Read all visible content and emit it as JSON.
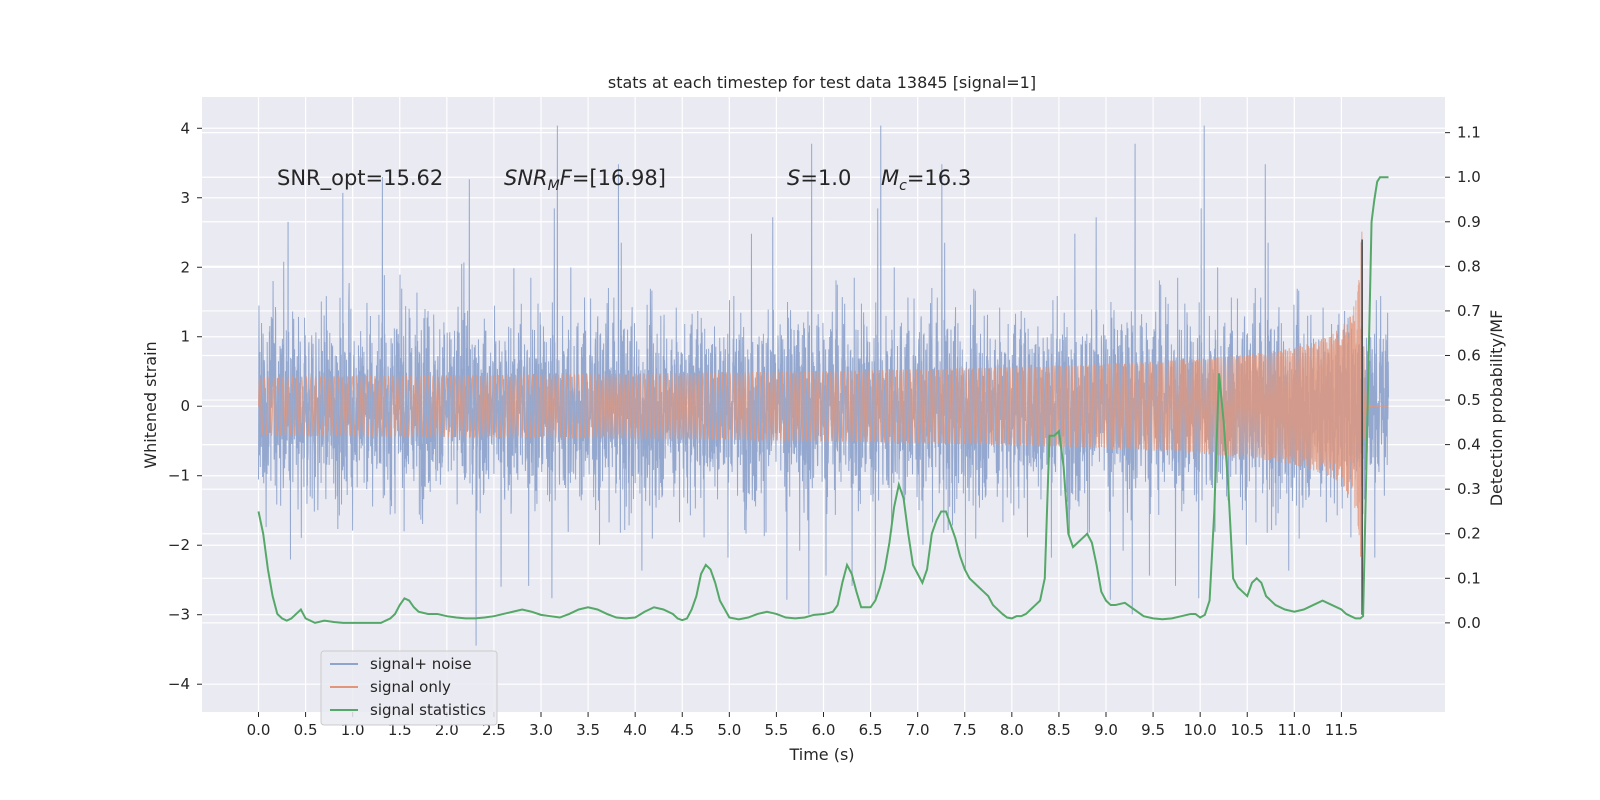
{
  "chart_data": {
    "type": "line",
    "title": "stats at each timestep for test data 13845 [signal=1]",
    "xlabel": "Time (s)",
    "ylabel_left": "Whitened strain",
    "ylabel_right": "Detection probability/MF",
    "xlim": [
      -0.6,
      12.6
    ],
    "ylim_left": [
      -4.4,
      4.45
    ],
    "ylim_right": [
      -0.2,
      1.18
    ],
    "x_ticks": [
      "0.0",
      "0.5",
      "1.0",
      "1.5",
      "2.0",
      "2.5",
      "3.0",
      "3.5",
      "4.0",
      "4.5",
      "5.0",
      "5.5",
      "6.0",
      "6.5",
      "7.0",
      "7.5",
      "8.0",
      "8.5",
      "9.0",
      "9.5",
      "10.0",
      "10.5",
      "11.0",
      "11.5"
    ],
    "y_ticks_left": [
      "−4",
      "−3",
      "−2",
      "−1",
      "0",
      "1",
      "2",
      "3",
      "4"
    ],
    "y_ticks_right": [
      "0.0",
      "0.1",
      "0.2",
      "0.3",
      "0.4",
      "0.5",
      "0.6",
      "0.7",
      "0.8",
      "0.9",
      "1.0",
      "1.1"
    ],
    "grid": true,
    "legend_position": "lower left",
    "annotations": [
      {
        "text": "SNR_opt=15.62"
      },
      {
        "text": "SNR_MF=[16.98]"
      },
      {
        "text": "S=1.0"
      },
      {
        "text": "M_c=16.3"
      }
    ],
    "series": [
      {
        "name": "signal+ noise",
        "axis": "left",
        "color": "#8fa4cc",
        "description_values": {
          "t_start": 0.0,
          "t_end": 12.0,
          "typical_range": [
            -2.0,
            2.0
          ],
          "max": 4.1,
          "min": -3.8
        }
      },
      {
        "name": "signal only",
        "axis": "left",
        "color": "#e1967a",
        "chirp": {
          "t_start": 0.0,
          "t_merger": 11.72,
          "t_end": 12.0,
          "peak_amplitude": 2.6
        }
      },
      {
        "name": "signal statistics",
        "axis": "right",
        "color": "#55a868",
        "x": [
          0.0,
          0.05,
          0.1,
          0.15,
          0.2,
          0.25,
          0.3,
          0.35,
          0.4,
          0.45,
          0.5,
          0.6,
          0.7,
          0.8,
          0.9,
          1.0,
          1.1,
          1.2,
          1.3,
          1.4,
          1.45,
          1.5,
          1.55,
          1.6,
          1.65,
          1.7,
          1.8,
          1.9,
          2.0,
          2.1,
          2.2,
          2.3,
          2.4,
          2.5,
          2.6,
          2.7,
          2.8,
          2.9,
          3.0,
          3.1,
          3.2,
          3.3,
          3.4,
          3.5,
          3.6,
          3.7,
          3.8,
          3.9,
          4.0,
          4.1,
          4.2,
          4.3,
          4.4,
          4.45,
          4.5,
          4.55,
          4.6,
          4.65,
          4.7,
          4.75,
          4.8,
          4.85,
          4.9,
          5.0,
          5.1,
          5.2,
          5.3,
          5.4,
          5.5,
          5.6,
          5.7,
          5.8,
          5.9,
          6.0,
          6.05,
          6.1,
          6.15,
          6.2,
          6.25,
          6.3,
          6.35,
          6.4,
          6.5,
          6.55,
          6.6,
          6.65,
          6.7,
          6.75,
          6.8,
          6.85,
          6.9,
          6.95,
          7.0,
          7.05,
          7.1,
          7.15,
          7.2,
          7.25,
          7.3,
          7.35,
          7.4,
          7.45,
          7.5,
          7.55,
          7.6,
          7.65,
          7.7,
          7.75,
          7.8,
          7.9,
          7.95,
          8.0,
          8.05,
          8.1,
          8.15,
          8.2,
          8.25,
          8.3,
          8.35,
          8.4,
          8.45,
          8.5,
          8.55,
          8.6,
          8.65,
          8.7,
          8.75,
          8.8,
          8.85,
          8.9,
          8.95,
          9.0,
          9.05,
          9.1,
          9.2,
          9.3,
          9.4,
          9.5,
          9.6,
          9.7,
          9.8,
          9.9,
          9.95,
          10.0,
          10.05,
          10.1,
          10.15,
          10.2,
          10.25,
          10.3,
          10.35,
          10.4,
          10.45,
          10.5,
          10.55,
          10.6,
          10.65,
          10.7,
          10.8,
          10.9,
          11.0,
          11.1,
          11.2,
          11.3,
          11.4,
          11.5,
          11.55,
          11.6,
          11.65,
          11.7,
          11.73,
          11.76,
          11.79,
          11.82,
          11.85,
          11.88,
          11.91,
          11.94,
          11.97,
          12.0
        ],
        "values": [
          0.25,
          0.2,
          0.12,
          0.06,
          0.02,
          0.01,
          0.005,
          0.01,
          0.02,
          0.03,
          0.01,
          0.0,
          0.005,
          0.002,
          0.0,
          0.0,
          0.0,
          0.0,
          0.0,
          0.01,
          0.02,
          0.04,
          0.055,
          0.05,
          0.035,
          0.025,
          0.02,
          0.02,
          0.015,
          0.012,
          0.01,
          0.01,
          0.012,
          0.015,
          0.02,
          0.025,
          0.03,
          0.025,
          0.018,
          0.015,
          0.012,
          0.02,
          0.03,
          0.035,
          0.03,
          0.02,
          0.012,
          0.01,
          0.012,
          0.025,
          0.035,
          0.03,
          0.02,
          0.01,
          0.006,
          0.01,
          0.03,
          0.06,
          0.11,
          0.13,
          0.12,
          0.09,
          0.05,
          0.012,
          0.008,
          0.012,
          0.02,
          0.025,
          0.02,
          0.012,
          0.01,
          0.012,
          0.018,
          0.02,
          0.022,
          0.025,
          0.04,
          0.09,
          0.13,
          0.11,
          0.07,
          0.035,
          0.035,
          0.05,
          0.08,
          0.12,
          0.18,
          0.26,
          0.31,
          0.28,
          0.2,
          0.13,
          0.11,
          0.09,
          0.12,
          0.2,
          0.23,
          0.25,
          0.25,
          0.22,
          0.19,
          0.15,
          0.12,
          0.1,
          0.09,
          0.08,
          0.07,
          0.06,
          0.04,
          0.02,
          0.012,
          0.01,
          0.015,
          0.015,
          0.02,
          0.03,
          0.04,
          0.05,
          0.1,
          0.42,
          0.42,
          0.43,
          0.35,
          0.2,
          0.17,
          0.18,
          0.19,
          0.2,
          0.18,
          0.13,
          0.07,
          0.05,
          0.04,
          0.04,
          0.045,
          0.03,
          0.015,
          0.01,
          0.008,
          0.01,
          0.015,
          0.02,
          0.02,
          0.012,
          0.018,
          0.05,
          0.25,
          0.56,
          0.45,
          0.3,
          0.1,
          0.08,
          0.07,
          0.06,
          0.09,
          0.1,
          0.09,
          0.06,
          0.04,
          0.03,
          0.025,
          0.03,
          0.04,
          0.05,
          0.04,
          0.03,
          0.02,
          0.015,
          0.01,
          0.01,
          0.015,
          0.3,
          0.6,
          0.9,
          0.95,
          0.99,
          1.0,
          1.0,
          1.0,
          1.0
        ]
      }
    ]
  }
}
